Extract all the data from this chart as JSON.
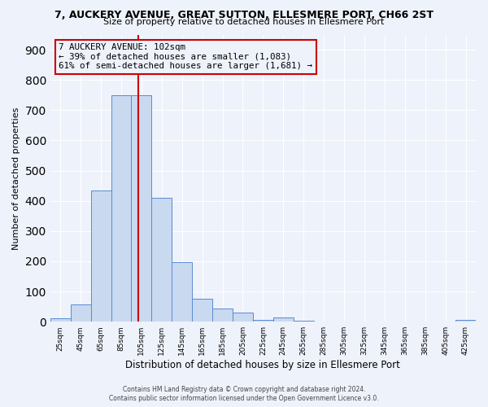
{
  "title": "7, AUCKERY AVENUE, GREAT SUTTON, ELLESMERE PORT, CH66 2ST",
  "subtitle": "Size of property relative to detached houses in Ellesmere Port",
  "xlabel": "Distribution of detached houses by size in Ellesmere Port",
  "ylabel": "Number of detached properties",
  "bin_edges": [
    15,
    35,
    55,
    75,
    95,
    115,
    135,
    155,
    175,
    195,
    215,
    235,
    255,
    275,
    295,
    315,
    335,
    355,
    375,
    395,
    415,
    435
  ],
  "bin_labels": [
    "25sqm",
    "45sqm",
    "65sqm",
    "85sqm",
    "105sqm",
    "125sqm",
    "145sqm",
    "165sqm",
    "185sqm",
    "205sqm",
    "225sqm",
    "245sqm",
    "265sqm",
    "285sqm",
    "305sqm",
    "325sqm",
    "345sqm",
    "365sqm",
    "385sqm",
    "405sqm",
    "425sqm"
  ],
  "counts": [
    10,
    57,
    435,
    750,
    750,
    410,
    198,
    75,
    45,
    30,
    5,
    15,
    3,
    0,
    0,
    0,
    0,
    0,
    0,
    0,
    5
  ],
  "bar_facecolor": "#c9d9f0",
  "bar_edgecolor": "#5b8bd0",
  "vline_x": 102,
  "vline_color": "#cc0000",
  "annotation_title": "7 AUCKERY AVENUE: 102sqm",
  "annotation_line1": "← 39% of detached houses are smaller (1,083)",
  "annotation_line2": "61% of semi-detached houses are larger (1,681) →",
  "annotation_box_edgecolor": "#cc0000",
  "ylim": [
    0,
    950
  ],
  "yticks": [
    0,
    100,
    200,
    300,
    400,
    500,
    600,
    700,
    800,
    900
  ],
  "background_color": "#eef2fb",
  "grid_color": "#ffffff",
  "footer_line1": "Contains HM Land Registry data © Crown copyright and database right 2024.",
  "footer_line2": "Contains public sector information licensed under the Open Government Licence v3.0."
}
